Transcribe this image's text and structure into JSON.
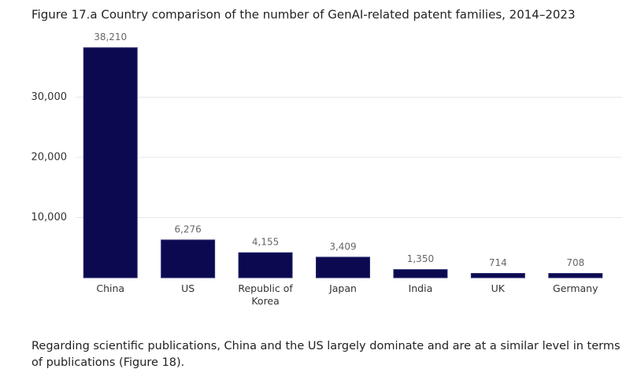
{
  "chart_data": {
    "type": "bar",
    "title": "Figure 17.a Country comparison of the number of GenAI-related patent families, 2014–2023",
    "categories": [
      "China",
      "US",
      "Republic of Korea",
      "Japan",
      "India",
      "UK",
      "Germany"
    ],
    "values": [
      38210,
      6276,
      4155,
      3409,
      1350,
      714,
      708
    ],
    "value_labels": [
      "38,210",
      "6,276",
      "4,155",
      "3,409",
      "1,350",
      "714",
      "708"
    ],
    "color": "#0b0950",
    "ylim": [
      0,
      40000
    ],
    "yticks": [
      {
        "value": 10000,
        "label": "10,000"
      },
      {
        "value": 20000,
        "label": "20,000"
      },
      {
        "value": 30000,
        "label": "30,000"
      }
    ],
    "grid": true
  },
  "paragraph": "Regarding scientific publications, China and the US largely dominate and are at a similar level in terms of publications (Figure 18)."
}
